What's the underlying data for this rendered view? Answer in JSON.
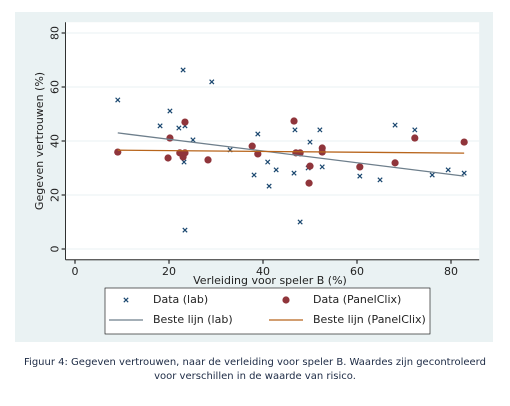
{
  "chart_data": {
    "type": "scatter",
    "xlabel": "Verleiding voor speler B (%)",
    "ylabel": "Gegeven vertrouwen (%)",
    "xlim": [
      -2,
      86
    ],
    "xticks": [
      0,
      20,
      40,
      60,
      80
    ],
    "ylim": [
      -4,
      84
    ],
    "yticks": [
      0,
      20,
      40,
      60,
      80
    ],
    "grid": true,
    "legend": "bottom",
    "series": [
      {
        "name": "Data (lab)",
        "color": "#1a476f",
        "marker": "x",
        "x": [
          9.1,
          18.1,
          20.2,
          22.1,
          23,
          23.4,
          23.2,
          23.4,
          29.1,
          25.1,
          33,
          38.9,
          38.1,
          41,
          41.3,
          42.8,
          46.8,
          46.6,
          47.9,
          49.6,
          50,
          52.1,
          52.6,
          60.6,
          64.9,
          68.1,
          72.3,
          76,
          79.4,
          82.8
        ],
        "values": [
          55.2,
          45.6,
          51.1,
          44.8,
          66.3,
          45.6,
          32.2,
          7,
          61.9,
          40.4,
          36.7,
          42.6,
          27.4,
          32.2,
          23.3,
          29.3,
          44.1,
          28.1,
          10,
          30,
          39.6,
          44.1,
          30.4,
          27,
          25.6,
          45.9,
          44.1,
          27.4,
          29.3,
          28.1
        ]
      },
      {
        "name": "Data (PanelClix)",
        "color": "#90353b",
        "marker": "circle",
        "x": [
          9.1,
          19.8,
          20.2,
          22.3,
          23,
          23.4,
          23.4,
          28.3,
          37.7,
          38.9,
          46.6,
          47,
          47.9,
          50,
          49.8,
          52.6,
          52.6,
          60.6,
          68.1,
          72.3,
          82.8
        ],
        "values": [
          35.9,
          33.7,
          41.1,
          35.6,
          34.1,
          47,
          35.6,
          33,
          38.1,
          35.2,
          47.4,
          35.6,
          35.6,
          30.7,
          24.4,
          37.4,
          35.9,
          30.4,
          31.9,
          41.1,
          39.6
        ]
      },
      {
        "name": "Beste lijn (lab)",
        "color": "#6e7f8c",
        "marker": "line",
        "x": [
          9.1,
          82.8
        ],
        "values": [
          43,
          27
        ]
      },
      {
        "name": "Beste lijn (PanelClix)",
        "color": "#b8651c",
        "marker": "line",
        "x": [
          9.1,
          82.8
        ],
        "values": [
          36.6,
          35.5
        ]
      }
    ]
  },
  "caption": [
    "Figuur 4: Gegeven vertrouwen, naar de verleiding voor speler B. Waardes zijn gecontroleerd",
    "voor verschillen in de waarde van risico."
  ]
}
